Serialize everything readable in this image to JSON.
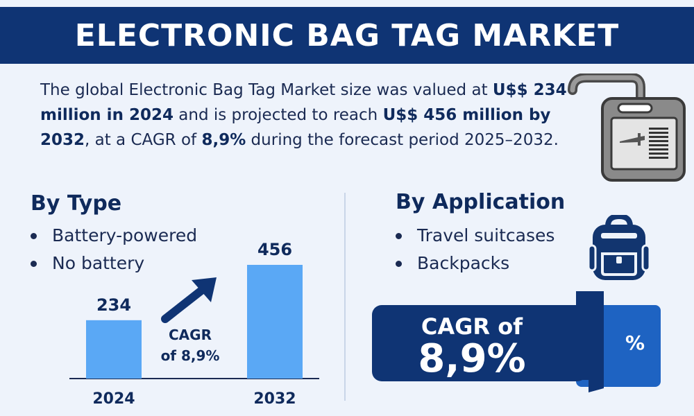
{
  "header": {
    "title": "ELECTRONIC BAG TAG MARKET"
  },
  "intro": {
    "part1": "The global Electronic Bag Tag Market size was valued at ",
    "bold1": "U$$ 234 million in 2024",
    "part2": " and is projected to reach ",
    "bold2": "U$$ 456 million by 2032",
    "part3": ", at a CAGR of ",
    "bold3": "8,9%",
    "part4": " during the forecast period 2025–2032."
  },
  "by_type": {
    "title": "By Type",
    "items": [
      "Battery-powered",
      "No battery"
    ]
  },
  "by_application": {
    "title": "By Application",
    "items": [
      "Travel suitcases",
      "Backpacks"
    ]
  },
  "chart_data": {
    "type": "bar",
    "categories": [
      "2024",
      "2032"
    ],
    "values": [
      234,
      456
    ],
    "annotation": [
      "CAGR",
      "of 8,9%"
    ],
    "bar_color": "#5aa8f5"
  },
  "cagr_banner": {
    "label": "CAGR of",
    "value": "8,9%",
    "symbol": "%"
  },
  "icons": {
    "tag": "luggage-tag-icon",
    "backpack": "backpack-icon",
    "arrow": "trend-arrow-icon"
  },
  "colors": {
    "navy": "#0f3474",
    "accent_blue": "#1e63c2",
    "bar_blue": "#5aa8f5",
    "background": "#eef3fb"
  }
}
